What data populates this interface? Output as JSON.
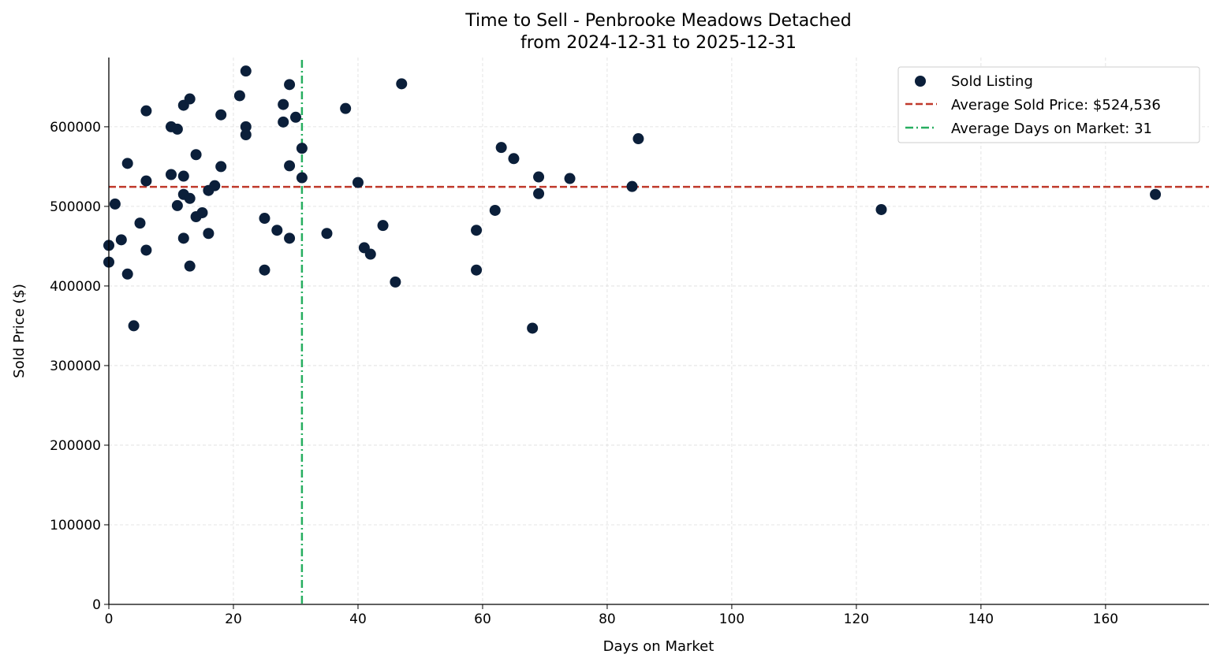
{
  "chart_data": {
    "type": "scatter",
    "title": "Time to Sell - Penbrooke Meadows Detached",
    "subtitle": "from 2024-12-31 to 2025-12-31",
    "xlabel": "Days on Market",
    "ylabel": "Sold Price ($)",
    "xlim": [
      0,
      176.6
    ],
    "ylim": [
      0,
      687000
    ],
    "xticks": [
      0,
      20,
      40,
      60,
      80,
      100,
      120,
      140,
      160
    ],
    "yticks": [
      0,
      100000,
      200000,
      300000,
      400000,
      500000,
      600000
    ],
    "grid": true,
    "legend_position": "top-right",
    "colors": {
      "points": "#0b1f3a",
      "avg_price": "#c0392b",
      "avg_days": "#27ae60"
    },
    "series": [
      {
        "name": "Sold Listing",
        "points": [
          [
            0,
            451000
          ],
          [
            0,
            430000
          ],
          [
            1,
            503000
          ],
          [
            2,
            458000
          ],
          [
            3,
            554000
          ],
          [
            3,
            415000
          ],
          [
            4,
            350000
          ],
          [
            5,
            479000
          ],
          [
            6,
            620000
          ],
          [
            6,
            532000
          ],
          [
            6,
            445000
          ],
          [
            10,
            600000
          ],
          [
            10,
            540000
          ],
          [
            11,
            597000
          ],
          [
            11,
            501000
          ],
          [
            12,
            627000
          ],
          [
            12,
            538000
          ],
          [
            12,
            515000
          ],
          [
            12,
            460000
          ],
          [
            13,
            635000
          ],
          [
            13,
            510000
          ],
          [
            13,
            425000
          ],
          [
            14,
            565000
          ],
          [
            14,
            487000
          ],
          [
            15,
            492000
          ],
          [
            16,
            520000
          ],
          [
            16,
            466000
          ],
          [
            17,
            526000
          ],
          [
            18,
            615000
          ],
          [
            18,
            550000
          ],
          [
            21,
            639000
          ],
          [
            22,
            670000
          ],
          [
            22,
            600000
          ],
          [
            22,
            590000
          ],
          [
            25,
            485000
          ],
          [
            25,
            420000
          ],
          [
            27,
            470000
          ],
          [
            28,
            628000
          ],
          [
            28,
            606000
          ],
          [
            29,
            653000
          ],
          [
            29,
            551000
          ],
          [
            29,
            460000
          ],
          [
            30,
            612000
          ],
          [
            31,
            573000
          ],
          [
            31,
            536000
          ],
          [
            35,
            466000
          ],
          [
            38,
            623000
          ],
          [
            40,
            530000
          ],
          [
            41,
            448000
          ],
          [
            42,
            440000
          ],
          [
            44,
            476000
          ],
          [
            46,
            405000
          ],
          [
            47,
            654000
          ],
          [
            59,
            470000
          ],
          [
            59,
            420000
          ],
          [
            62,
            495000
          ],
          [
            63,
            574000
          ],
          [
            65,
            560000
          ],
          [
            68,
            347000
          ],
          [
            69,
            537000
          ],
          [
            69,
            516000
          ],
          [
            74,
            535000
          ],
          [
            84,
            525000
          ],
          [
            85,
            585000
          ],
          [
            124,
            496000
          ],
          [
            168,
            515000
          ]
        ]
      }
    ],
    "reference_lines": [
      {
        "name": "Average Sold Price: $524,536",
        "orientation": "horizontal",
        "value": 524536,
        "style": "dashed"
      },
      {
        "name": "Average Days on Market: 31",
        "orientation": "vertical",
        "value": 31,
        "style": "dashdot"
      }
    ]
  }
}
